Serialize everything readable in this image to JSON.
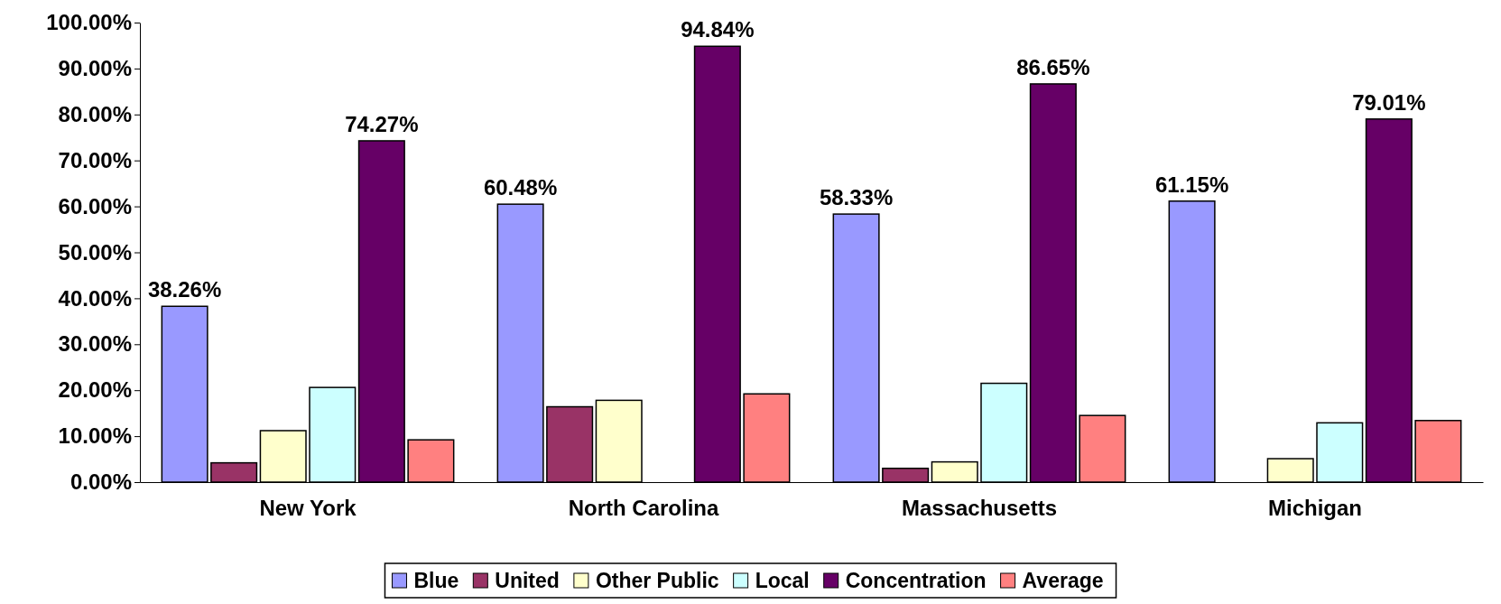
{
  "chart_data": {
    "type": "bar",
    "categories": [
      "New York",
      "North Carolina",
      "Massachusetts",
      "Michigan"
    ],
    "series": [
      {
        "name": "Blue",
        "color": "#9999ff",
        "values": [
          38.26,
          60.48,
          58.33,
          61.15
        ],
        "value_labels": [
          "38.26%",
          "60.48%",
          "58.33%",
          "61.15%"
        ]
      },
      {
        "name": "United",
        "color": "#993366",
        "values": [
          4.2,
          16.4,
          3.0,
          0
        ]
      },
      {
        "name": "Other Public",
        "color": "#ffffcc",
        "values": [
          11.2,
          17.8,
          4.4,
          5.1
        ]
      },
      {
        "name": "Local",
        "color": "#ccffff",
        "values": [
          20.6,
          0,
          21.5,
          12.9
        ]
      },
      {
        "name": "Concentration",
        "color": "#660066",
        "values": [
          74.27,
          94.84,
          86.65,
          79.01
        ],
        "value_labels": [
          "74.27%",
          "94.84%",
          "86.65%",
          "79.01%"
        ]
      },
      {
        "name": "Average",
        "color": "#ff8080",
        "values": [
          9.2,
          19.2,
          14.5,
          13.4
        ]
      }
    ],
    "ylim": [
      0,
      100
    ],
    "yticks": [
      {
        "value": 0,
        "label": "0.00%"
      },
      {
        "value": 10,
        "label": "10.00%"
      },
      {
        "value": 20,
        "label": "20.00%"
      },
      {
        "value": 30,
        "label": "30.00%"
      },
      {
        "value": 40,
        "label": "40.00%"
      },
      {
        "value": 50,
        "label": "50.00%"
      },
      {
        "value": 60,
        "label": "60.00%"
      },
      {
        "value": 70,
        "label": "70.00%"
      },
      {
        "value": 80,
        "label": "80.00%"
      },
      {
        "value": 90,
        "label": "90.00%"
      },
      {
        "value": 100,
        "label": "100.00%"
      }
    ],
    "legend": "bottom",
    "grid": false
  }
}
